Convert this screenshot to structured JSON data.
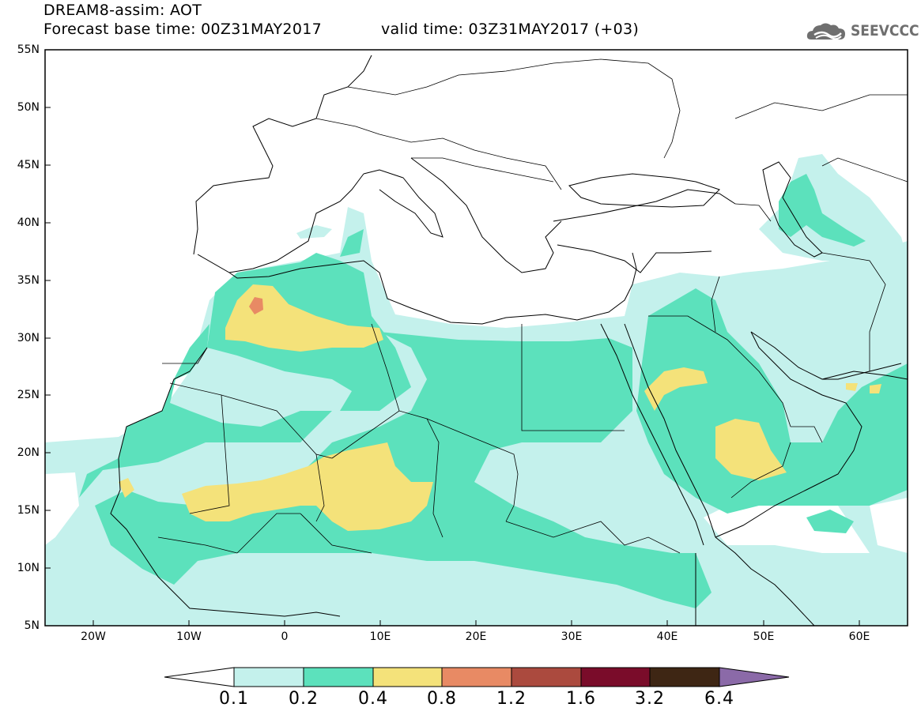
{
  "header": {
    "title_line1": "DREAM8-assim: AOT",
    "title_line2": "Forecast base time: 00Z31MAY2017",
    "valid_time": "valid time: 03Z31MAY2017 (+03)",
    "logo_text": "SEEVCCC"
  },
  "map": {
    "lat_labels": [
      "55N",
      "50N",
      "45N",
      "40N",
      "35N",
      "30N",
      "25N",
      "20N",
      "15N",
      "10N",
      "5N"
    ],
    "lon_labels": [
      "20W",
      "10W",
      "0",
      "10E",
      "20E",
      "30E",
      "40E",
      "50E",
      "60E"
    ],
    "lat_range": [
      5,
      55
    ],
    "lon_range": [
      -25,
      65
    ]
  },
  "colorbar": {
    "labels": [
      "0.1",
      "0.2",
      "0.4",
      "0.8",
      "1.2",
      "1.6",
      "3.2",
      "6.4"
    ],
    "colors": [
      "#c4f1ec",
      "#5ce1bc",
      "#f4e27a",
      "#e88a64",
      "#ab4a3e",
      "#7a0c2a",
      "#3e2614",
      "#8b6aa8"
    ]
  }
}
